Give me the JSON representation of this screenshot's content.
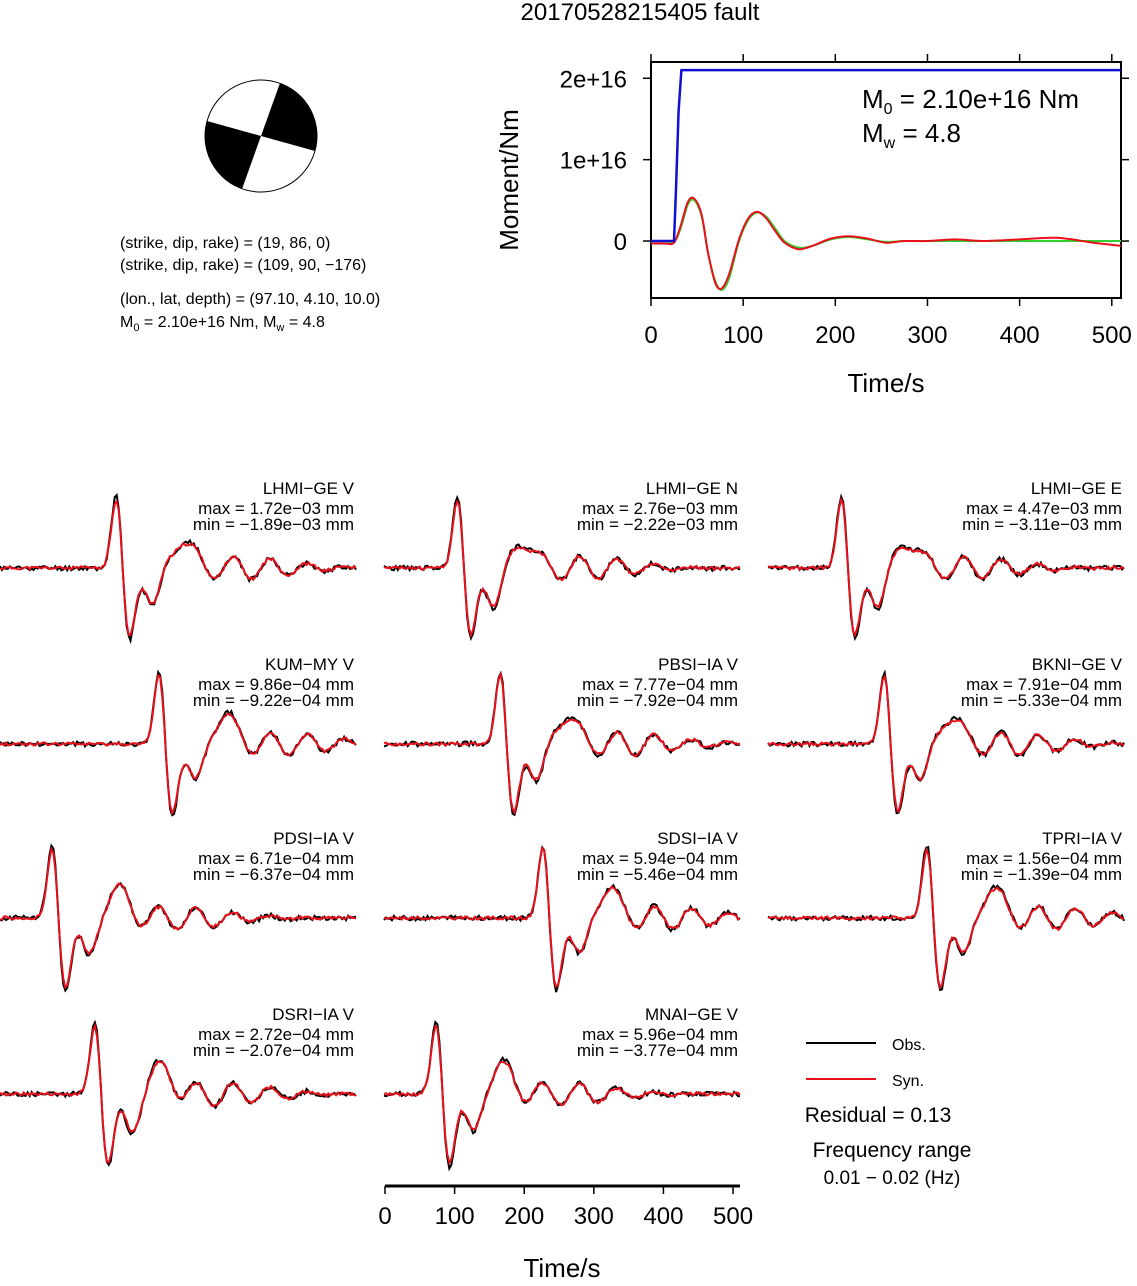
{
  "title": "20170528215405 fault",
  "colors": {
    "obs": "#000000",
    "syn": "#e8101a",
    "moment": "#1010d0",
    "stf": "#30d030",
    "beachball": "#000000"
  },
  "focal": {
    "line1": "(strike, dip, rake) = (19, 86, 0)",
    "line2": "(strike, dip, rake) = (109, 90, −176)",
    "line3": "(lon., lat, depth) = (97.10, 4.10, 10.0)",
    "line4_prefix": "M",
    "line4_sub": "0",
    "line4_rest": " = 2.10e+16 Nm, M",
    "line4_sub2": "w",
    "line4_end": " = 4.8"
  },
  "moment_panel": {
    "ylabel": "Moment/Nm",
    "xlabel": "Time/s",
    "m0_prefix": "M",
    "m0_sub": "0",
    "m0_rest": " = 2.10e+16 Nm",
    "mw_prefix": "M",
    "mw_sub": "w",
    "mw_rest": " = 4.8"
  },
  "waveform_axis": {
    "xlabel": "Time/s"
  },
  "legend": {
    "obs": "Obs.",
    "syn": "Syn.",
    "residual": "Residual = 0.13",
    "freq_label": "Frequency range",
    "freq_value": "0.01 − 0.02 (Hz)"
  },
  "chart_data": [
    {
      "type": "line",
      "title": "",
      "xlabel": "Time/s",
      "ylabel": "Moment/Nm",
      "xlim": [
        0,
        510
      ],
      "ylim": [
        -7000000000000000.0,
        2.2e+16
      ],
      "xticks": [
        0,
        100,
        200,
        300,
        400,
        500
      ],
      "xtick_labels": [
        "0",
        "100",
        "200",
        "300",
        "400",
        "500"
      ],
      "yticks": [
        0,
        1e+16,
        2e+16
      ],
      "ytick_labels": [
        "0",
        "1e+16",
        "2e+16"
      ],
      "series": [
        {
          "name": "",
          "color": "#1010d0",
          "x": [
            0,
            25,
            27,
            30,
            33,
            510
          ],
          "y": [
            0,
            0,
            6000000000000000.0,
            1.6e+16,
            2.1e+16,
            2.1e+16
          ]
        },
        {
          "name": "",
          "color": "#30d030",
          "x": [
            0,
            15,
            25,
            32,
            40,
            47,
            55,
            62,
            70,
            77,
            85,
            95,
            105,
            115,
            125,
            135,
            145,
            160,
            175,
            195,
            215,
            235,
            255,
            275,
            300,
            330,
            360,
            400,
            440,
            480,
            510
          ],
          "y": [
            -300000000000000.0,
            -300000000000000.0,
            -100000000000000.0,
            1500000000000000.0,
            4500000000000000.0,
            5000000000000000.0,
            3000000000000000.0,
            -1500000000000000.0,
            -5000000000000000.0,
            -6000000000000000.0,
            -4500000000000000.0,
            -200000000000000.0,
            2500000000000000.0,
            3500000000000000.0,
            3000000000000000.0,
            1500000000000000.0,
            0.0,
            -800000000000000.0,
            -600000000000000.0,
            200000000000000.0,
            500000000000000.0,
            200000000000000.0,
            -100000000000000.0,
            0.0,
            0.0,
            0.0,
            0.0,
            0.0,
            0.0,
            0.0,
            0.0
          ]
        },
        {
          "name": "",
          "color": "#e8101a",
          "x": [
            0,
            15,
            25,
            32,
            40,
            47,
            55,
            62,
            70,
            77,
            85,
            95,
            105,
            115,
            125,
            135,
            145,
            160,
            175,
            195,
            215,
            235,
            255,
            275,
            300,
            330,
            360,
            400,
            440,
            480,
            510
          ],
          "y": [
            -300000000000000.0,
            -300000000000000.0,
            -200000000000000.0,
            1800000000000000.0,
            4800000000000000.0,
            5200000000000000.0,
            3200000000000000.0,
            -1500000000000000.0,
            -5200000000000000.0,
            -5800000000000000.0,
            -4000000000000000.0,
            0.0,
            2700000000000000.0,
            3600000000000000.0,
            2800000000000000.0,
            1200000000000000.0,
            -200000000000000.0,
            -1000000000000000.0,
            -600000000000000.0,
            300000000000000.0,
            600000000000000.0,
            300000000000000.0,
            -200000000000000.0,
            0.0,
            0.0,
            200000000000000.0,
            0.0,
            200000000000000.0,
            400000000000000.0,
            -200000000000000.0,
            -600000000000000.0
          ]
        }
      ]
    },
    {
      "type": "line",
      "title": "",
      "xlabel": "Time/s",
      "xlim": [
        0,
        510
      ],
      "xticks": [
        0,
        100,
        200,
        300,
        400,
        500
      ],
      "xtick_labels": [
        "0",
        "100",
        "200",
        "300",
        "400",
        "500"
      ],
      "stations": [
        {
          "name": "LHMI−GE V",
          "max": "max = 1.72e−03 mm",
          "min": "min = −1.89e−03 mm",
          "seed": 11
        },
        {
          "name": "LHMI−GE N",
          "max": "max = 2.76e−03 mm",
          "min": "min = −2.22e−03 mm",
          "seed": 23
        },
        {
          "name": "LHMI−GE E",
          "max": "max = 4.47e−03 mm",
          "min": "min = −3.11e−03 mm",
          "seed": 37
        },
        {
          "name": "KUM−MY V",
          "max": "max = 9.86e−04 mm",
          "min": "min = −9.22e−04 mm",
          "seed": 41
        },
        {
          "name": "PBSI−IA V",
          "max": "max = 7.77e−04 mm",
          "min": "min = −7.92e−04 mm",
          "seed": 53
        },
        {
          "name": "BKNI−GE V",
          "max": "max = 7.91e−04 mm",
          "min": "min = −5.33e−04 mm",
          "seed": 67
        },
        {
          "name": "PDSI−IA V",
          "max": "max = 6.71e−04 mm",
          "min": "min = −6.37e−04 mm",
          "seed": 71
        },
        {
          "name": "SDSI−IA V",
          "max": "max = 5.94e−04 mm",
          "min": "min = −5.46e−04 mm",
          "seed": 83
        },
        {
          "name": "TPRI−IA V",
          "max": "max = 1.56e−04 mm",
          "min": "min = −1.39e−04 mm",
          "seed": 97
        },
        {
          "name": "DSRI−IA V",
          "max": "max = 2.72e−04 mm",
          "min": "min = −2.07e−04 mm",
          "seed": 101
        },
        {
          "name": "MNAI−GE V",
          "max": "max = 5.96e−04 mm",
          "min": "min = −3.77e−04 mm",
          "seed": 113
        }
      ]
    }
  ]
}
